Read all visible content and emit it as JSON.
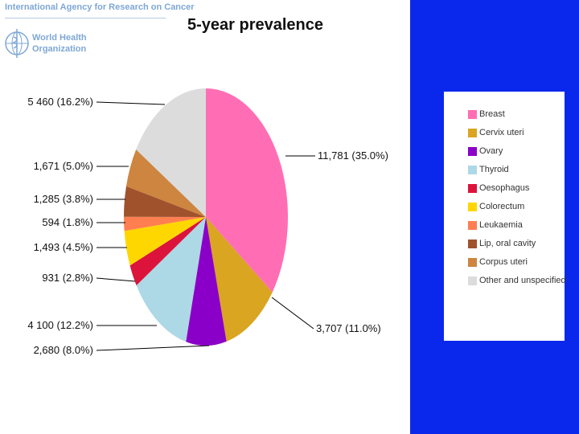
{
  "header": {
    "agency": "International Agency for Research on Cancer",
    "who_line1": "World Health",
    "who_line2": "Organization"
  },
  "chart_data": {
    "type": "pie",
    "title": "5-year prevalence",
    "legend_position": "right",
    "slices": [
      {
        "name": "Breast",
        "value": 11781,
        "label": "11,781 (35.0%)",
        "color": "#ff6eb4"
      },
      {
        "name": "Cervix uteri",
        "value": 3707,
        "label": "3,707 (11.0%)",
        "color": "#daa520"
      },
      {
        "name": "Ovary",
        "value": 2680,
        "label": "2,680 (8.0%)",
        "color": "#8b00c8"
      },
      {
        "name": "Thyroid",
        "value": 4100,
        "label": "4 100 (12.2%)",
        "color": "#add8e6"
      },
      {
        "name": "Oesophagus",
        "value": 931,
        "label": "931 (2.8%)",
        "color": "#dc143c"
      },
      {
        "name": "Colorectum",
        "value": 1493,
        "label": "1,493 (4.5%)",
        "color": "#ffd700"
      },
      {
        "name": "Leukaemia",
        "value": 594,
        "label": "594 (1.8%)",
        "color": "#ff7f50"
      },
      {
        "name": "Lip, oral cavity",
        "value": 1285,
        "label": "1,285 (3.8%)",
        "color": "#a0522d"
      },
      {
        "name": "Corpus uteri",
        "value": 1671,
        "label": "1,671 (5.0%)",
        "color": "#cd853f"
      },
      {
        "name": "Other and unspecified",
        "value": 5460,
        "label": "5 460 (16.2%)",
        "color": "#dcdcdc"
      }
    ]
  }
}
